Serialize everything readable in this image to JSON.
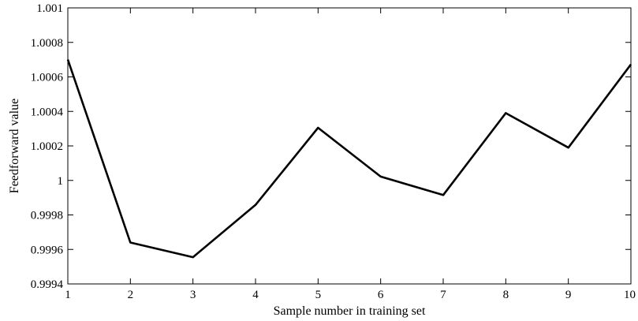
{
  "chart_data": {
    "type": "line",
    "title": "",
    "xlabel": "Sample number in training set",
    "ylabel": "Feedforward value",
    "xlim": [
      1,
      10
    ],
    "ylim": [
      0.9994,
      1.001
    ],
    "grid": false,
    "x_ticks": [
      1,
      2,
      3,
      4,
      5,
      6,
      7,
      8,
      9,
      10
    ],
    "x_tick_labels": [
      "1",
      "2",
      "3",
      "4",
      "5",
      "6",
      "7",
      "8",
      "9",
      "10"
    ],
    "y_ticks": [
      0.9994,
      0.9996,
      0.9998,
      1.0,
      1.0002,
      1.0004,
      1.0006,
      1.0008,
      1.001
    ],
    "y_tick_labels": [
      "0.9994",
      "0.9996",
      "0.9998",
      "1",
      "1.0002",
      "1.0004",
      "1.0006",
      "1.0008",
      "1.001"
    ],
    "line_color": "#000000",
    "series": [
      {
        "x": [
          1,
          2,
          3,
          4,
          5,
          6,
          7,
          8,
          9,
          10
        ],
        "values": [
          1.0007,
          0.99964,
          0.999555,
          0.999858,
          1.000305,
          1.000022,
          0.999915,
          1.00039,
          1.00019,
          1.000672
        ]
      }
    ]
  }
}
